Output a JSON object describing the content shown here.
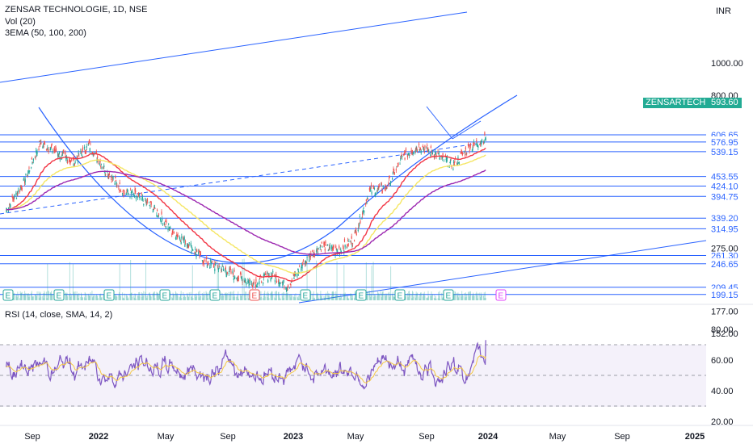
{
  "legend": {
    "title": "ZENSAR TECHNOLOGIE, 1D, NSE",
    "vol": "Vol (20)",
    "ema": "3EMA (50, 100, 200)",
    "rsi": "RSI (14, close, SMA, 14, 2)"
  },
  "currency": "INR",
  "ticker_tag": "ZENSARTECH",
  "last_price": "593.60",
  "colors": {
    "level": "#2962ff",
    "up": "#26a69a",
    "down": "#ef5350",
    "ema50": "#f23645",
    "ema100": "#f5e663",
    "ema200": "#9c27b0",
    "rsi": "#7e57c2",
    "rsi_ma": "#f5c842",
    "tag_bg": "#22ab94"
  },
  "chart_data": [
    {
      "type": "candlestick",
      "title": "ZENSAR TECHNOLOGIE, 1D, NSE",
      "price_scale": "log",
      "y_ticks": [
        "1000.00",
        "800.00",
        "275.00",
        "177.00",
        "152.00"
      ],
      "x_ticks": [
        "Sep",
        "2022",
        "May",
        "Sep",
        "2023",
        "May",
        "Sep",
        "2024",
        "May",
        "Sep",
        "2025"
      ],
      "x_ticks_bold": [
        "2022",
        "2023",
        "2024",
        "2025"
      ],
      "levels": [
        "606.65",
        "576.95",
        "539.15",
        "453.55",
        "424.10",
        "394.75",
        "339.20",
        "314.95",
        "261.30",
        "246.65",
        "209.45",
        "199.15"
      ],
      "last_price": 593.6,
      "events": [
        "E",
        "E",
        "E",
        "E",
        "E",
        "E",
        "E",
        "E",
        "E",
        "E",
        "E"
      ],
      "close_approx": [
        [
          "2021-07",
          360
        ],
        [
          "2021-08",
          430
        ],
        [
          "2021-09",
          570
        ],
        [
          "2021-10",
          540
        ],
        [
          "2021-11",
          500
        ],
        [
          "2021-12",
          565
        ],
        [
          "2022-01",
          470
        ],
        [
          "2022-02",
          410
        ],
        [
          "2022-03",
          395
        ],
        [
          "2022-04",
          360
        ],
        [
          "2022-05",
          310
        ],
        [
          "2022-06",
          285
        ],
        [
          "2022-07",
          250
        ],
        [
          "2022-08",
          240
        ],
        [
          "2022-09",
          225
        ],
        [
          "2022-10",
          215
        ],
        [
          "2022-11",
          230
        ],
        [
          "2022-12",
          210
        ],
        [
          "2023-01",
          250
        ],
        [
          "2023-02",
          280
        ],
        [
          "2023-03",
          270
        ],
        [
          "2023-04",
          290
        ],
        [
          "2023-05",
          410
        ],
        [
          "2023-06",
          420
        ],
        [
          "2023-07",
          520
        ],
        [
          "2023-08",
          560
        ],
        [
          "2023-09",
          530
        ],
        [
          "2023-10",
          490
        ],
        [
          "2023-11",
          555
        ],
        [
          "2023-12",
          593.6
        ]
      ]
    },
    {
      "type": "line",
      "title": "RSI (14, close, SMA, 14, 2)",
      "y_ticks": [
        "80.00",
        "60.00",
        "40.00",
        "20.00"
      ],
      "bands": [
        70,
        50,
        30
      ],
      "ylim": [
        20,
        90
      ]
    }
  ]
}
